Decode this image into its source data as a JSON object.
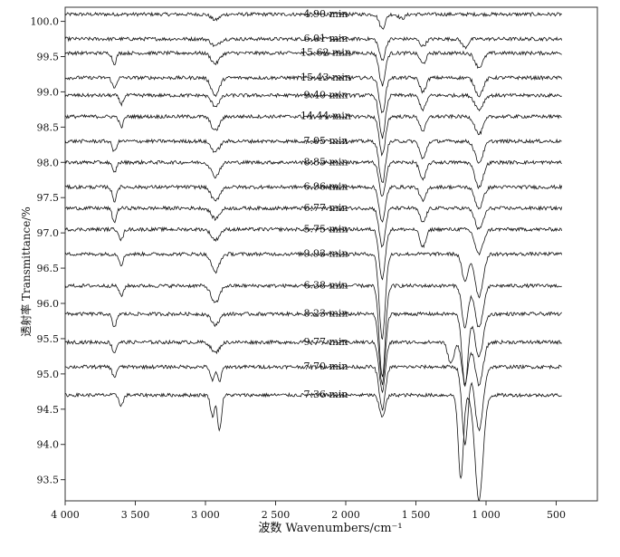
{
  "chart_data": {
    "type": "line",
    "title": "",
    "xlabel": "波数  Wavenumbers/cm⁻¹",
    "ylabel": "透射率  Transmittance/%",
    "xlim": [
      4000,
      400
    ],
    "x_direction": "reversed",
    "ylim": [
      93.2,
      100.2
    ],
    "x_ticks": [
      4000,
      3500,
      3000,
      2500,
      2000,
      1500,
      1000,
      500
    ],
    "x_tick_labels": [
      "4 000",
      "3 500",
      "3 000",
      "2 500",
      "2 000",
      "1 500",
      "1 000",
      "500"
    ],
    "y_ticks": [
      100.0,
      99.5,
      99.0,
      98.5,
      98.0,
      97.5,
      97.0,
      96.5,
      96.0,
      95.5,
      95.0,
      94.5,
      94.0,
      93.5
    ],
    "y_tick_labels": [
      "100.0",
      "99.5",
      "99.0",
      "98.5",
      "98.0",
      "97.5",
      "97.0",
      "96.5",
      "96.0",
      "95.5",
      "95.0",
      "94.5",
      "94.0",
      "93.5"
    ],
    "grid": false,
    "legend": "none",
    "annotations": [
      "4.90 min",
      "6.01 min",
      "15.62 min",
      "15.43 min",
      "9.40 min",
      "14.44 min",
      "7.05 min",
      "8.85 min",
      "6.96 min",
      "6.77 min",
      "5.75 min",
      "9.93 min",
      "6.38 min",
      "8.23 min",
      "9.77 min",
      "7.70 min",
      "7.36 min"
    ],
    "series": [
      {
        "label": "4.90 min",
        "baseline": 100.1,
        "bands": [
          [
            2930,
            0.08,
            40
          ],
          [
            1740,
            0.2,
            30
          ],
          [
            1600,
            0.06,
            30
          ]
        ]
      },
      {
        "label": "6.01 min",
        "baseline": 99.75,
        "bands": [
          [
            2930,
            0.1,
            40
          ],
          [
            1740,
            0.3,
            30
          ],
          [
            1450,
            0.1,
            30
          ],
          [
            1150,
            0.12,
            30
          ]
        ]
      },
      {
        "label": "15.62 min",
        "baseline": 99.55,
        "bands": [
          [
            3650,
            0.15,
            20
          ],
          [
            2930,
            0.15,
            40
          ],
          [
            1740,
            0.45,
            30
          ],
          [
            1450,
            0.15,
            30
          ],
          [
            1050,
            0.2,
            40
          ]
        ]
      },
      {
        "label": "15.43 min",
        "baseline": 99.2,
        "bands": [
          [
            3650,
            0.15,
            20
          ],
          [
            2930,
            0.25,
            40
          ],
          [
            1740,
            0.5,
            30
          ],
          [
            1450,
            0.2,
            30
          ],
          [
            1050,
            0.25,
            40
          ]
        ]
      },
      {
        "label": "9.40 min",
        "baseline": 98.95,
        "bands": [
          [
            3600,
            0.12,
            20
          ],
          [
            2930,
            0.15,
            40
          ],
          [
            1740,
            0.6,
            30
          ],
          [
            1450,
            0.2,
            30
          ],
          [
            1050,
            0.2,
            40
          ]
        ]
      },
      {
        "label": "14.44 min",
        "baseline": 98.65,
        "bands": [
          [
            3600,
            0.15,
            20
          ],
          [
            2930,
            0.2,
            40
          ],
          [
            1740,
            0.55,
            30
          ],
          [
            1450,
            0.2,
            30
          ],
          [
            1050,
            0.25,
            40
          ]
        ]
      },
      {
        "label": "7.05 min",
        "baseline": 98.3,
        "bands": [
          [
            3650,
            0.15,
            20
          ],
          [
            2930,
            0.15,
            40
          ],
          [
            1740,
            0.6,
            30
          ],
          [
            1450,
            0.25,
            30
          ],
          [
            1050,
            0.3,
            40
          ]
        ]
      },
      {
        "label": "8.85 min",
        "baseline": 98.0,
        "bands": [
          [
            3650,
            0.15,
            20
          ],
          [
            2930,
            0.2,
            40
          ],
          [
            1740,
            0.5,
            30
          ],
          [
            1450,
            0.25,
            30
          ],
          [
            1050,
            0.35,
            40
          ]
        ]
      },
      {
        "label": "6.96 min",
        "baseline": 97.65,
        "bands": [
          [
            3650,
            0.2,
            20
          ],
          [
            2930,
            0.2,
            40
          ],
          [
            1740,
            0.5,
            30
          ],
          [
            1450,
            0.2,
            30
          ],
          [
            1050,
            0.3,
            40
          ]
        ]
      },
      {
        "label": "6.77 min",
        "baseline": 97.35,
        "bands": [
          [
            3650,
            0.2,
            20
          ],
          [
            2930,
            0.15,
            40
          ],
          [
            1740,
            0.55,
            30
          ],
          [
            1450,
            0.2,
            30
          ],
          [
            1050,
            0.3,
            40
          ]
        ]
      },
      {
        "label": "5.75 min",
        "baseline": 97.05,
        "bands": [
          [
            3600,
            0.15,
            20
          ],
          [
            2930,
            0.15,
            40
          ],
          [
            1740,
            0.7,
            30
          ],
          [
            1450,
            0.25,
            30
          ],
          [
            1050,
            0.35,
            40
          ]
        ]
      },
      {
        "label": "9.93 min",
        "baseline": 96.7,
        "bands": [
          [
            3600,
            0.15,
            20
          ],
          [
            2930,
            0.25,
            40
          ],
          [
            1740,
            1.2,
            30
          ],
          [
            1150,
            0.4,
            30
          ],
          [
            1050,
            0.6,
            40
          ]
        ]
      },
      {
        "label": "6.38 min",
        "baseline": 96.25,
        "bands": [
          [
            3600,
            0.15,
            20
          ],
          [
            2930,
            0.25,
            40
          ],
          [
            1740,
            1.3,
            30
          ],
          [
            1150,
            0.6,
            30
          ],
          [
            1050,
            0.6,
            40
          ]
        ]
      },
      {
        "label": "8.23 min",
        "baseline": 95.85,
        "bands": [
          [
            3650,
            0.2,
            20
          ],
          [
            2930,
            0.15,
            40
          ],
          [
            1740,
            1.0,
            30
          ],
          [
            1150,
            1.0,
            30
          ],
          [
            1050,
            0.6,
            40
          ]
        ]
      },
      {
        "label": "9.77 min",
        "baseline": 95.45,
        "bands": [
          [
            3650,
            0.15,
            20
          ],
          [
            2930,
            0.15,
            40
          ],
          [
            1740,
            0.7,
            30
          ],
          [
            1250,
            0.3,
            30
          ],
          [
            1150,
            0.6,
            30
          ],
          [
            1050,
            0.6,
            40
          ]
        ]
      },
      {
        "label": "7.70 min",
        "baseline": 95.1,
        "bands": [
          [
            3650,
            0.15,
            20
          ],
          [
            2950,
            0.2,
            20
          ],
          [
            2900,
            0.2,
            20
          ],
          [
            1740,
            0.6,
            30
          ],
          [
            1150,
            1.1,
            30
          ],
          [
            1050,
            0.9,
            40
          ]
        ]
      },
      {
        "label": "7.36 min",
        "baseline": 94.7,
        "bands": [
          [
            3600,
            0.15,
            20
          ],
          [
            2950,
            0.3,
            20
          ],
          [
            2900,
            0.5,
            20
          ],
          [
            1740,
            0.3,
            30
          ],
          [
            1180,
            1.2,
            25
          ],
          [
            1050,
            1.5,
            40
          ]
        ]
      }
    ]
  }
}
